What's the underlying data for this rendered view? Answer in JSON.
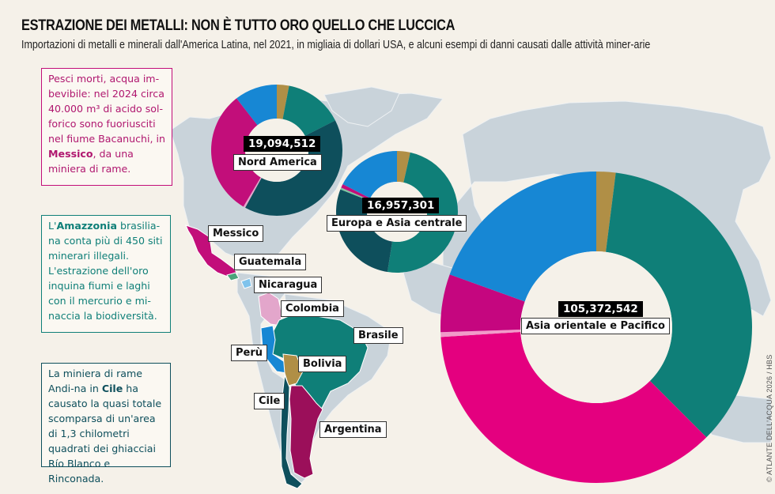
{
  "header": {
    "title": "ESTRAZIONE DEI METALLI: NON È TUTTO ORO QUELLO CHE LUCCICA",
    "subtitle": "Importazioni di metalli e minerali dall'America Latina, nel 2021, in migliaia di dollari USA, e alcuni esempi di danni causati dalle attività miner-arie"
  },
  "notes": {
    "messico": {
      "before": "Pesci morti, acqua im-bevibile: nel 2024 circa 40.000 m³ di acido sol-forico sono fuoriusciti nel fiume Bacanuchi, in ",
      "bold": "Messico",
      "after": ", da una miniera di rame."
    },
    "brasile": {
      "before": "L'",
      "bold": "Amazzonia",
      "after": " brasilia-na conta più di 450 siti minerari illegali. L'estrazione dell'oro inquina fiumi e laghi con il mercurio e mi-naccia la biodiversità."
    },
    "cile": {
      "before": "La miniera di rame Andi-na in ",
      "bold": "Cile",
      "after": " ha causato la quasi totale scomparsa di un'area di 1,3 chilometri quadrati dei ghiacciai Río Blanco e Rinconada."
    }
  },
  "countries": {
    "messico": "Messico",
    "guatemala": "Guatemala",
    "nicaragua": "Nicaragua",
    "colombia": "Colombia",
    "brasile": "Brasile",
    "peru": "Perù",
    "bolivia": "Bolivia",
    "cile": "Cile",
    "argentina": "Argentina"
  },
  "colors": {
    "background": "#f5f1e9",
    "land": "#c9d3da",
    "Messico": "#c20e7a",
    "Guatemala": "#4aa37a",
    "Nicaragua": "#7fc3ec",
    "Colombia": "#e3a6cb",
    "Brasile": "#0f7f78",
    "Perù": "#1787d4",
    "Bolivia": "#b08f46",
    "Cile": "#0e4f5c",
    "Argentina": "#9b0f5a"
  },
  "chart_data": {
    "type": "pie",
    "title": "Importazioni di metalli e minerali dall'America Latina, 2021 (migliaia di USD)",
    "note": "Donut charts on a world map; segment shares estimated from the image, colours map to exporting Latin-American countries",
    "legend_mapping": {
      "gold": "Bolivia",
      "teal": "Brasile",
      "dark teal": "Cile",
      "light pink": "Colombia",
      "magenta": "Messico",
      "dark magenta": "Argentina",
      "light green": "Guatemala",
      "blue": "Perù"
    },
    "charts": [
      {
        "region": "Nord America",
        "total": 19094512,
        "total_label": "19,094,512",
        "segments": [
          {
            "country": "Bolivia",
            "share": 0.03,
            "color": "#b08f46"
          },
          {
            "country": "Brasile",
            "share": 0.145,
            "color": "#0f7f78"
          },
          {
            "country": "Cile",
            "share": 0.405,
            "color": "#0e4f5c"
          },
          {
            "country": "Colombia",
            "share": 0.005,
            "color": "#e3a6cb"
          },
          {
            "country": "Messico",
            "share": 0.31,
            "color": "#c20e7a"
          },
          {
            "country": "Perù",
            "share": 0.105,
            "color": "#1787d4"
          }
        ]
      },
      {
        "region": "Europa e Asia centrale",
        "total": 16957301,
        "total_label": "16,957,301",
        "segments": [
          {
            "country": "Bolivia",
            "share": 0.035,
            "color": "#b08f46"
          },
          {
            "country": "Brasile",
            "share": 0.49,
            "color": "#0f7f78"
          },
          {
            "country": "Cile",
            "share": 0.285,
            "color": "#0e4f5c"
          },
          {
            "country": "Guatemala",
            "share": 0.005,
            "color": "#7fc4a0"
          },
          {
            "country": "Messico",
            "share": 0.01,
            "color": "#c20e7a"
          },
          {
            "country": "Perù",
            "share": 0.175,
            "color": "#1787d4"
          }
        ]
      },
      {
        "region": "Asia orientale e Pacifico",
        "total": 105372542,
        "total_label": "105,372,542",
        "segments": [
          {
            "country": "Bolivia",
            "share": 0.02,
            "color": "#b08f46"
          },
          {
            "country": "Brasile",
            "share": 0.355,
            "color": "#0f7f78"
          },
          {
            "country": "Cile",
            "share": 0.365,
            "color": "#e4007f"
          },
          {
            "country": "Colombia",
            "share": 0.005,
            "color": "#f19bc9"
          },
          {
            "country": "Argentina",
            "share": 0.06,
            "color": "#c5067f"
          },
          {
            "country": "Perù",
            "share": 0.195,
            "color": "#1787d4"
          }
        ]
      }
    ]
  },
  "credit": "© ATLANTE DELL'ACQUA 2026 / HBS"
}
